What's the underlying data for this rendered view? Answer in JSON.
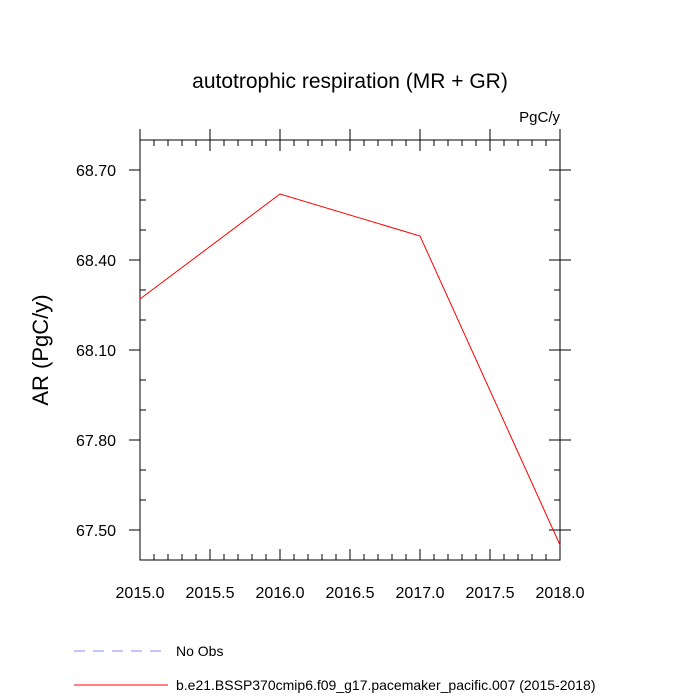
{
  "chart_data": {
    "type": "line",
    "title": "autotrophic respiration (MR + GR)",
    "units_label": "PgC/y",
    "xlabel": "",
    "ylabel": "AR  (PgC/y)",
    "xlim": [
      2015.0,
      2018.0
    ],
    "ylim": [
      67.4,
      68.8
    ],
    "x_ticks": [
      2015.0,
      2015.5,
      2016.0,
      2016.5,
      2017.0,
      2017.5,
      2018.0
    ],
    "x_tick_labels": [
      "2015.0",
      "2015.5",
      "2016.0",
      "2016.5",
      "2017.0",
      "2017.5",
      "2018.0"
    ],
    "y_ticks": [
      67.5,
      67.8,
      68.1,
      68.4,
      68.7
    ],
    "y_tick_labels": [
      "67.50",
      "67.80",
      "68.10",
      "68.40",
      "68.70"
    ],
    "series": [
      {
        "name": "b.e21.BSSP370cmip6.f09_g17.pacemaker_pacific.007 (2015-2018)",
        "color": "#ff0000",
        "style": "solid",
        "x": [
          2015,
          2016,
          2017,
          2018
        ],
        "values": [
          68.27,
          68.62,
          68.48,
          67.45
        ]
      }
    ],
    "legend": [
      {
        "label": "No Obs",
        "color": "#8a8aff",
        "style": "dashed"
      },
      {
        "label": "b.e21.BSSP370cmip6.f09_g17.pacemaker_pacific.007 (2015-2018)",
        "color": "#ff0000",
        "style": "solid"
      }
    ],
    "legend_position": "bottom-left",
    "grid": false
  }
}
